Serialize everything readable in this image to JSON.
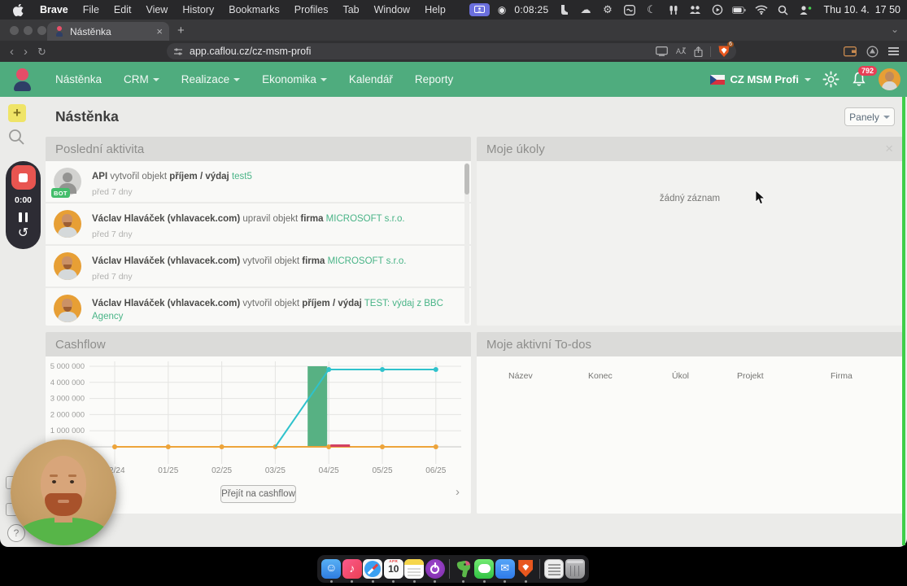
{
  "menubar": {
    "items": [
      "Brave",
      "File",
      "Edit",
      "View",
      "History",
      "Bookmarks",
      "Profiles",
      "Tab",
      "Window",
      "Help"
    ],
    "recording_time": "0:08:25",
    "clock": "Thu 10. 4.  17 50"
  },
  "browser": {
    "tab_title": "Nástěnka",
    "url": "app.caflou.cz/cz-msm-profi",
    "shield_badge": "6"
  },
  "nav": {
    "items": [
      {
        "label": "Nástěnka",
        "dropdown": false
      },
      {
        "label": "CRM",
        "dropdown": true
      },
      {
        "label": "Realizace",
        "dropdown": true
      },
      {
        "label": "Ekonomika",
        "dropdown": true
      },
      {
        "label": "Kalendář",
        "dropdown": false
      },
      {
        "label": "Reporty",
        "dropdown": false
      }
    ],
    "account": "CZ MSM Profi",
    "notifications_count": "792"
  },
  "page": {
    "title": "Nástěnka",
    "panels_button": "Panely"
  },
  "activity": {
    "title": "Poslední aktivita",
    "bot_badge": "BOT",
    "items": [
      {
        "actor": "API",
        "action": "vytvořil objekt",
        "object_type": "příjem / výdaj",
        "object": "test5",
        "time": "před 7 dny",
        "bot": true
      },
      {
        "actor": "Václav Hlaváček (vhlavacek.com)",
        "action": "upravil objekt",
        "object_type": "firma",
        "object": "MICROSOFT s.r.o.",
        "time": "před 7 dny",
        "bot": false
      },
      {
        "actor": "Václav Hlaváček (vhlavacek.com)",
        "action": "vytvořil objekt",
        "object_type": "firma",
        "object": "MICROSOFT s.r.o.",
        "time": "před 7 dny",
        "bot": false
      },
      {
        "actor": "Václav Hlaváček (vhlavacek.com)",
        "action": "vytvořil objekt",
        "object_type": "příjem / výdaj",
        "object": "TEST: výdaj z BBC Agency",
        "time": "před 7 dny",
        "bot": false
      }
    ]
  },
  "tasks": {
    "title": "Moje úkoly",
    "empty_message": "žádný záznam"
  },
  "cashflow": {
    "title": "Cashflow",
    "button_label": "Přejít na cashflow"
  },
  "todos": {
    "title": "Moje aktivní To-dos",
    "columns": [
      "Název",
      "Konec",
      "Úkol",
      "Projekt",
      "Firma"
    ]
  },
  "chart_data": {
    "type": "bar",
    "note": "mixed bar+line cashflow chart",
    "x_labels": [
      "12/24",
      "01/25",
      "02/25",
      "03/25",
      "04/25",
      "05/25",
      "06/25"
    ],
    "y_ticks": [
      {
        "label": "1 000 000",
        "value": 1000000
      },
      {
        "label": "2 000 000",
        "value": 2000000
      },
      {
        "label": "3 000 000",
        "value": 3000000
      },
      {
        "label": "4 000 000",
        "value": 4000000
      },
      {
        "label": "5 000 000",
        "value": 5000000
      }
    ],
    "ylim": [
      0,
      5250000
    ],
    "grid": true,
    "legend": "none",
    "series": [
      {
        "name": "green-bar",
        "type": "bar",
        "color": "#57b183",
        "values": [
          0,
          0,
          0,
          0,
          5000000,
          0,
          0
        ]
      },
      {
        "name": "red-bar",
        "type": "bar",
        "color": "#d23f63",
        "values": [
          0,
          0,
          0,
          0,
          150000,
          0,
          0
        ]
      },
      {
        "name": "orange-line",
        "type": "line",
        "color": "#eda43a",
        "values": [
          0,
          0,
          0,
          0,
          0,
          0,
          0
        ],
        "dots": [
          0,
          1,
          2,
          3,
          4,
          5,
          6
        ]
      },
      {
        "name": "teal-line",
        "type": "line",
        "color": "#2fc2cc",
        "values": [
          null,
          null,
          null,
          0,
          4800000,
          4800000,
          4800000
        ],
        "dots": [
          4,
          5,
          6
        ]
      }
    ]
  },
  "recorder": {
    "time": "0:00"
  },
  "dock": {
    "apps": [
      "finder",
      "music",
      "safari",
      "calendar",
      "notes",
      "power",
      "sep",
      "parrot",
      "messages",
      "mail",
      "brave",
      "sep",
      "docs",
      "trash"
    ],
    "calendar_day": "10"
  },
  "icons": {
    "plus": "+",
    "new_tab": "+",
    "close": "×",
    "back": "‹",
    "forward": "›",
    "reload": "↻",
    "chevron_right": "›",
    "chevron_down": "⌄",
    "stop_record": "◉",
    "cloud": "☁",
    "gear": "⚙",
    "moon": "☾",
    "restart": "↺",
    "question": "?"
  }
}
